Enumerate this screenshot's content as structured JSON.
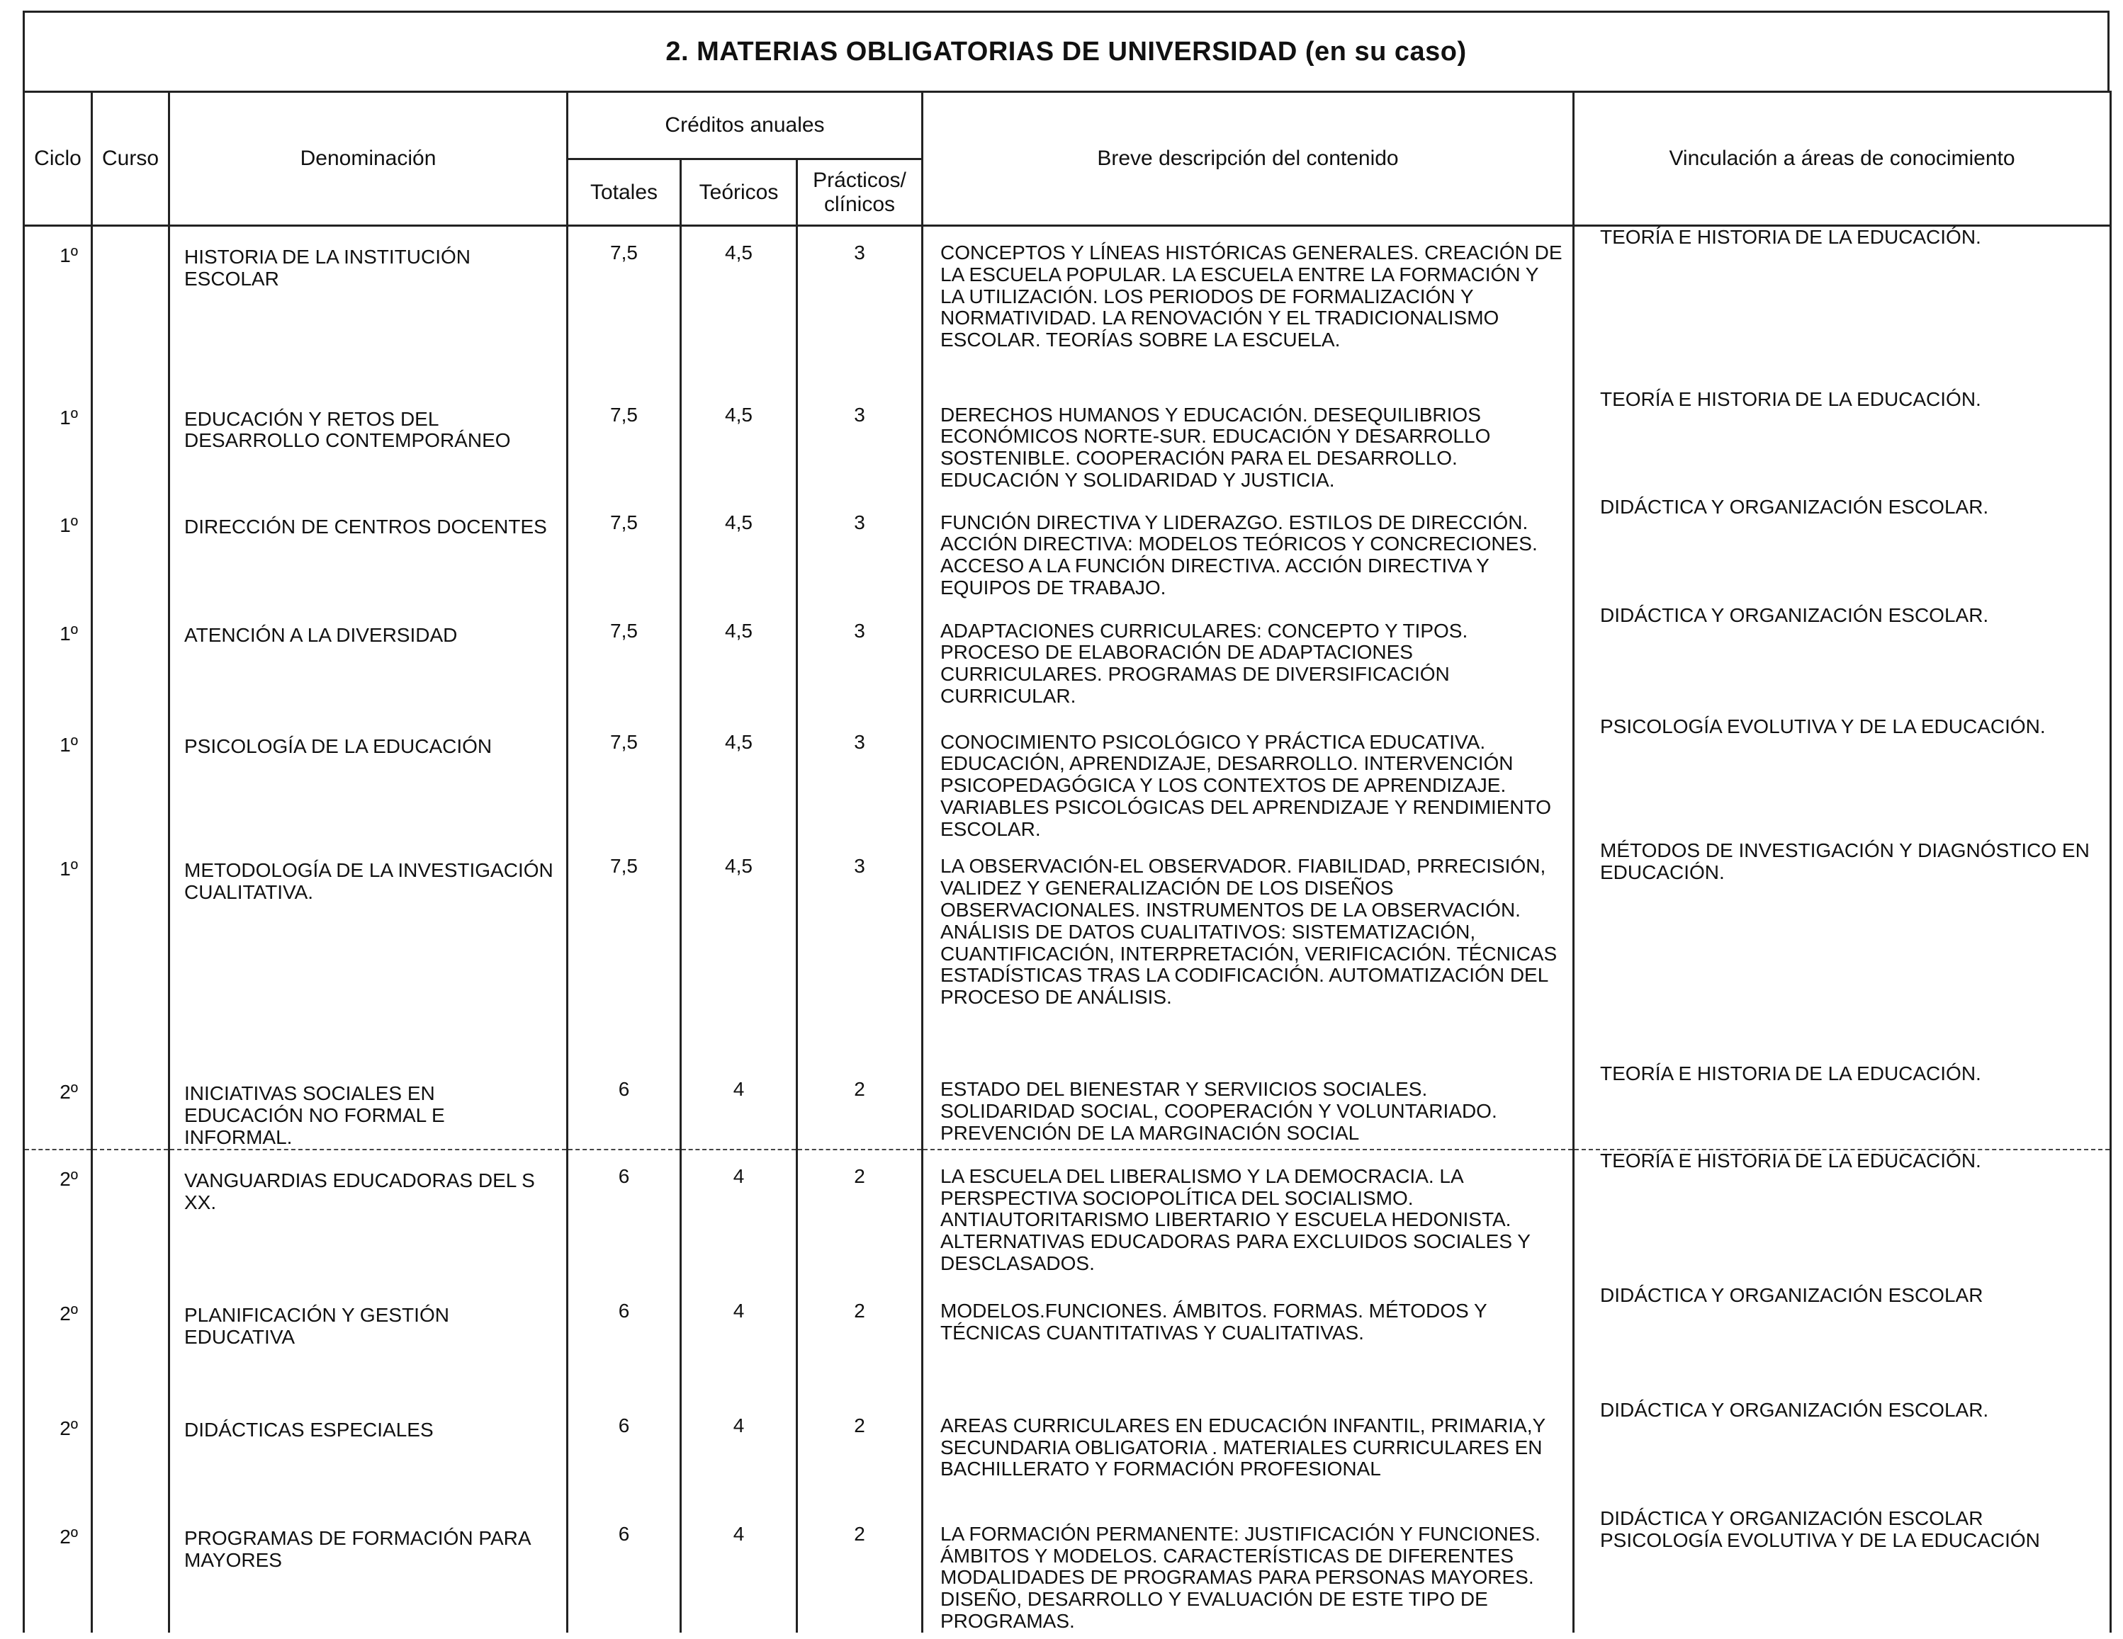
{
  "title": "2. MATERIAS OBLIGATORIAS DE UNIVERSIDAD (en su caso)",
  "headers": {
    "ciclo": "Ciclo",
    "curso": "Curso",
    "denominacion": "Denominación",
    "creditos": "Créditos anuales",
    "totales": "Totales",
    "teoricos": "Teóricos",
    "practicos": "Prácticos/ clínicos",
    "descripcion": "Breve descripción del contenido",
    "vinculacion": "Vinculación a áreas de conocimiento"
  },
  "rows": [
    {
      "ciclo": "1º",
      "curso": "",
      "denominacion": "HISTORIA DE LA INSTITUCIÓN ESCOLAR",
      "totales": "7,5",
      "teoricos": "4,5",
      "practicos": "3",
      "descripcion": "CONCEPTOS Y LÍNEAS HISTÓRICAS GENERALES. CREACIÓN DE LA ESCUELA POPULAR. LA ESCUELA ENTRE LA FORMACIÓN Y LA UTILIZACIÓN. LOS PERIODOS DE FORMALIZACIÓN Y NORMATIVIDAD. LA RENOVACIÓN Y EL TRADICIONALISMO ESCOLAR. TEORÍAS SOBRE LA ESCUELA.",
      "vinculacion": "TEORÍA E HISTORIA DE LA EDUCACIÓN."
    },
    {
      "ciclo": "1º",
      "curso": "",
      "denominacion": "EDUCACIÓN Y RETOS DEL DESARROLLO CONTEMPORÁNEO",
      "totales": "7,5",
      "teoricos": "4,5",
      "practicos": "3",
      "descripcion": "DERECHOS HUMANOS Y EDUCACIÓN. DESEQUILIBRIOS ECONÓMICOS NORTE-SUR. EDUCACIÓN Y DESARROLLO SOSTENIBLE. COOPERACIÓN PARA EL DESARROLLO. EDUCACIÓN Y SOLIDARIDAD Y JUSTICIA.",
      "vinculacion": "TEORÍA E HISTORIA DE LA EDUCACIÓN."
    },
    {
      "ciclo": "1º",
      "curso": "",
      "denominacion": "DIRECCIÓN DE CENTROS DOCENTES",
      "totales": "7,5",
      "teoricos": "4,5",
      "practicos": "3",
      "descripcion": "FUNCIÓN DIRECTIVA Y LIDERAZGO. ESTILOS DE DIRECCIÓN. ACCIÓN DIRECTIVA: MODELOS TEÓRICOS Y CONCRECIONES. ACCESO A LA FUNCIÓN DIRECTIVA. ACCIÓN DIRECTIVA Y EQUIPOS DE TRABAJO.",
      "vinculacion": "DIDÁCTICA Y ORGANIZACIÓN ESCOLAR."
    },
    {
      "ciclo": "1º",
      "curso": "",
      "denominacion": "ATENCIÓN A LA DIVERSIDAD",
      "totales": "7,5",
      "teoricos": "4,5",
      "practicos": "3",
      "descripcion": "ADAPTACIONES CURRICULARES: CONCEPTO Y TIPOS. PROCESO DE ELABORACIÓN DE ADAPTACIONES CURRICULARES. PROGRAMAS DE DIVERSIFICACIÓN CURRICULAR.",
      "vinculacion": "DIDÁCTICA Y ORGANIZACIÓN ESCOLAR."
    },
    {
      "ciclo": "1º",
      "curso": "",
      "denominacion": "PSICOLOGÍA DE LA EDUCACIÓN",
      "totales": "7,5",
      "teoricos": "4,5",
      "practicos": "3",
      "descripcion": "CONOCIMIENTO PSICOLÓGICO Y PRÁCTICA EDUCATIVA. EDUCACIÓN, APRENDIZAJE, DESARROLLO. INTERVENCIÓN PSICOPEDAGÓGICA Y LOS CONTEXTOS DE APRENDIZAJE. VARIABLES PSICOLÓGICAS DEL APRENDIZAJE Y RENDIMIENTO ESCOLAR.",
      "vinculacion": "PSICOLOGÍA EVOLUTIVA Y DE LA EDUCACIÓN."
    },
    {
      "ciclo": "1º",
      "curso": "",
      "denominacion": "METODOLOGÍA DE LA INVESTIGACIÓN CUALITATIVA.",
      "totales": "7,5",
      "teoricos": "4,5",
      "practicos": "3",
      "descripcion": "LA OBSERVACIÓN-EL OBSERVADOR. FIABILIDAD, PRRECISIÓN, VALIDEZ Y GENERALIZACIÓN DE LOS DISEÑOS OBSERVACIONALES. INSTRUMENTOS DE LA OBSERVACIÓN. ANÁLISIS DE DATOS CUALITATIVOS: SISTEMATIZACIÓN, CUANTIFICACIÓN, INTERPRETACIÓN, VERIFICACIÓN. TÉCNICAS ESTADÍSTICAS TRAS LA CODIFICACIÓN. AUTOMATIZACIÓN DEL PROCESO DE ANÁLISIS.",
      "vinculacion": "MÉTODOS DE INVESTIGACIÓN Y DIAGNÓSTICO EN EDUCACIÓN."
    },
    {
      "ciclo": "2º",
      "curso": "",
      "denominacion": "INICIATIVAS SOCIALES EN EDUCACIÓN NO FORMAL E INFORMAL.",
      "totales": "6",
      "teoricos": "4",
      "practicos": "2",
      "descripcion": "ESTADO DEL BIENESTAR Y SERVIICIOS SOCIALES. SOLIDARIDAD SOCIAL, COOPERACIÓN Y VOLUNTARIADO. PREVENCIÓN DE LA MARGINACIÓN SOCIAL",
      "vinculacion": "TEORÍA E HISTORIA DE LA EDUCACIÓN."
    },
    {
      "ciclo": "2º",
      "curso": "",
      "denominacion": "VANGUARDIAS EDUCADORAS DEL S XX.",
      "totales": "6",
      "teoricos": "4",
      "practicos": "2",
      "descripcion": "LA ESCUELA DEL LIBERALISMO Y LA DEMOCRACIA. LA PERSPECTIVA SOCIOPOLÍTICA DEL SOCIALISMO. ANTIAUTORITARISMO LIBERTARIO Y ESCUELA HEDONISTA. ALTERNATIVAS EDUCADORAS PARA EXCLUIDOS SOCIALES Y DESCLASADOS.",
      "vinculacion": "TEORÍA E HISTORIA DE LA EDUCACIÓN."
    },
    {
      "ciclo": "2º",
      "curso": "",
      "denominacion": "PLANIFICACIÓN Y GESTIÓN EDUCATIVA",
      "totales": "6",
      "teoricos": "4",
      "practicos": "2",
      "descripcion": "MODELOS.FUNCIONES. ÁMBITOS. FORMAS. MÉTODOS Y TÉCNICAS CUANTITATIVAS Y CUALITATIVAS.",
      "vinculacion": "DIDÁCTICA Y ORGANIZACIÓN ESCOLAR"
    },
    {
      "ciclo": "2º",
      "curso": "",
      "denominacion": "DIDÁCTICAS ESPECIALES",
      "totales": "6",
      "teoricos": "4",
      "practicos": "2",
      "descripcion": "AREAS CURRICULARES EN EDUCACIÓN INFANTIL, PRIMARIA,Y SECUNDARIA OBLIGATORIA . MATERIALES CURRICULARES EN BACHILLERATO Y FORMACIÓN PROFESIONAL",
      "vinculacion": "DIDÁCTICA Y ORGANIZACIÓN ESCOLAR."
    },
    {
      "ciclo": "2º",
      "curso": "",
      "denominacion": "PROGRAMAS DE FORMACIÓN PARA MAYORES",
      "totales": "6",
      "teoricos": "4",
      "practicos": "2",
      "descripcion": "LA FORMACIÓN PERMANENTE: JUSTIFICACIÓN Y FUNCIONES. ÁMBITOS Y MODELOS. CARACTERÍSTICAS DE DIFERENTES MODALIDADES DE PROGRAMAS PARA PERSONAS MAYORES. DISEÑO, DESARROLLO Y EVALUACIÓN DE ESTE TIPO DE PROGRAMAS.",
      "vinculacion": "DIDÁCTICA Y ORGANIZACIÓN ESCOLAR PSICOLOGÍA EVOLUTIVA Y DE LA EDUCACIÓN"
    }
  ]
}
